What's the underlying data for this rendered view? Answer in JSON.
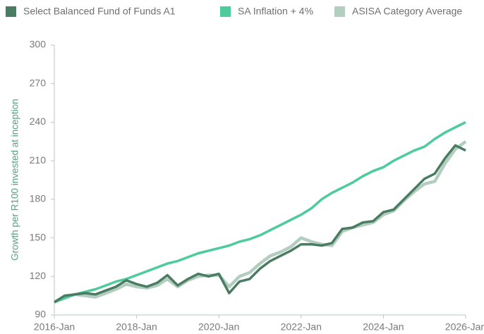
{
  "chart_data": {
    "type": "line",
    "y_label": "Growth per R100 invested at inception",
    "x": [
      "2016-Jan",
      "2016-Apr",
      "2016-Jul",
      "2016-Oct",
      "2017-Jan",
      "2017-Apr",
      "2017-Jul",
      "2017-Oct",
      "2018-Jan",
      "2018-Apr",
      "2018-Jul",
      "2018-Oct",
      "2019-Jan",
      "2019-Apr",
      "2019-Jul",
      "2019-Oct",
      "2020-Jan",
      "2020-Apr",
      "2020-Jul",
      "2020-Oct",
      "2021-Jan",
      "2021-Apr",
      "2021-Jul",
      "2021-Oct",
      "2022-Jan",
      "2022-Apr",
      "2022-Jul",
      "2022-Oct",
      "2023-Jan",
      "2023-Apr",
      "2023-Jul",
      "2023-Oct",
      "2024-Jan",
      "2024-Apr",
      "2024-Jul",
      "2024-Oct",
      "2025-Jan",
      "2025-Apr",
      "2025-Jul",
      "2025-Oct",
      "2026-Jan"
    ],
    "series": [
      {
        "name": "Select Balanced Fund of Funds A1",
        "color": "#4a7c62",
        "values": [
          100,
          105,
          106,
          107,
          106,
          109,
          112,
          117,
          114,
          112,
          115,
          121,
          113,
          118,
          122,
          120,
          122,
          107,
          116,
          118,
          126,
          132,
          136,
          140,
          145,
          145,
          144,
          146,
          157,
          158,
          162,
          163,
          170,
          172,
          180,
          188,
          196,
          200,
          212,
          222,
          218
        ]
      },
      {
        "name": "SA Inflation + 4%",
        "color": "#4ecb9c",
        "values": [
          100,
          103,
          106,
          108,
          110,
          113,
          116,
          118,
          121,
          124,
          127,
          130,
          132,
          135,
          138,
          140,
          142,
          144,
          147,
          149,
          152,
          156,
          160,
          164,
          168,
          173,
          180,
          185,
          189,
          193,
          198,
          202,
          205,
          210,
          214,
          218,
          221,
          227,
          232,
          236,
          240
        ]
      },
      {
        "name": "ASISA Category Average",
        "color": "#b3cdc0",
        "values": [
          100,
          104,
          106,
          105,
          104,
          107,
          110,
          114,
          112,
          111,
          113,
          118,
          112,
          117,
          120,
          121,
          121,
          112,
          120,
          123,
          130,
          136,
          139,
          143,
          150,
          147,
          145,
          144,
          155,
          158,
          160,
          162,
          168,
          171,
          179,
          186,
          192,
          194,
          208,
          219,
          225
        ]
      }
    ],
    "ylim": [
      90,
      300
    ],
    "yticks": [
      90,
      120,
      150,
      180,
      210,
      240,
      270,
      300
    ],
    "xticks": [
      "2016-Jan",
      "2018-Jan",
      "2020-Jan",
      "2022-Jan",
      "2024-Jan",
      "2026-Jan"
    ],
    "legend": "top"
  }
}
